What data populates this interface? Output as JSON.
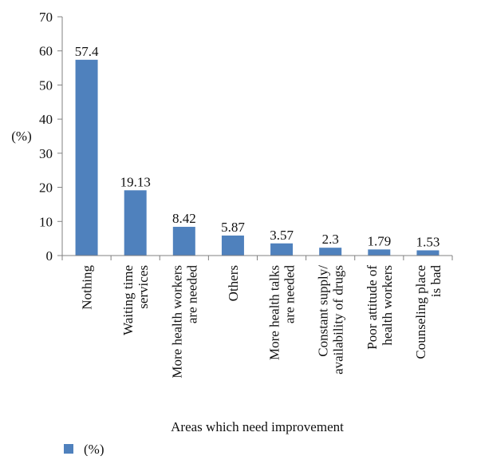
{
  "chart_data": {
    "type": "bar",
    "categories": [
      [
        "Nothing"
      ],
      [
        "Waiting time",
        "services"
      ],
      [
        "More health workers",
        "are needed"
      ],
      [
        "Others"
      ],
      [
        "More health talks",
        "are needed"
      ],
      [
        "Constant supply/",
        "availability of drugs"
      ],
      [
        "Poor attitude of",
        "health workers"
      ],
      [
        "Counseling place",
        "is bad"
      ]
    ],
    "series": [
      {
        "name": "(%)",
        "values": [
          57.4,
          19.13,
          8.42,
          5.87,
          3.57,
          2.3,
          1.79,
          1.53
        ],
        "value_labels": [
          "57.4",
          "19.13",
          "8.42",
          "5.87",
          "3.57",
          "2.3",
          "1.79",
          "1.53"
        ]
      }
    ],
    "xlabel": "Areas which need improvement",
    "ylabel": "(%)",
    "ylim": [
      0,
      70
    ],
    "yticks": [
      0,
      10,
      20,
      30,
      40,
      50,
      60,
      70
    ],
    "grid": false,
    "legend": {
      "position": "bottom-left",
      "label": "(%)"
    },
    "colors": {
      "bar": "#4F81BD",
      "axis": "#808080"
    }
  }
}
